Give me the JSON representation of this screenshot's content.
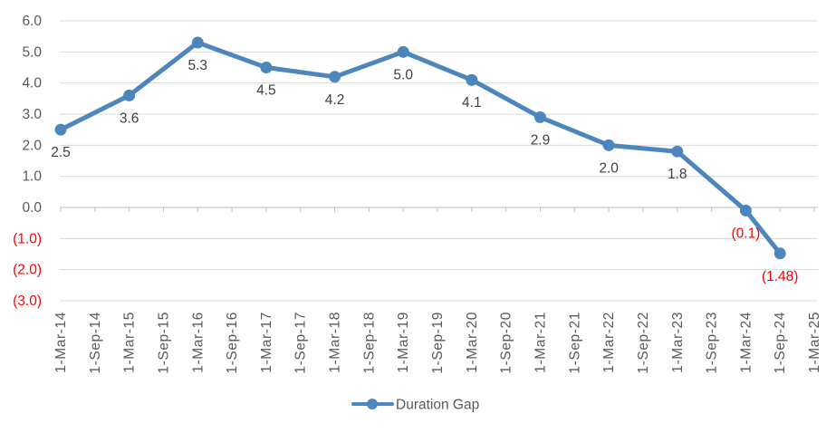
{
  "chart_data": {
    "type": "line",
    "title": "",
    "xlabel": "",
    "ylabel": "",
    "ylim": [
      -3,
      6
    ],
    "grid": true,
    "gridline_color": "#D9D9D9",
    "axis_line_color": "#BFBFBF",
    "background_color": "#FFFFFF",
    "categories": [
      "1-Mar-14",
      "1-Sep-14",
      "1-Mar-15",
      "1-Sep-15",
      "1-Mar-16",
      "1-Sep-16",
      "1-Mar-17",
      "1-Sep-17",
      "1-Mar-18",
      "1-Sep-18",
      "1-Mar-19",
      "1-Sep-19",
      "1-Mar-20",
      "1-Sep-20",
      "1-Mar-21",
      "1-Sep-21",
      "1-Mar-22",
      "1-Sep-22",
      "1-Mar-23",
      "1-Sep-23",
      "1-Mar-24",
      "1-Sep-24",
      "1-Mar-25"
    ],
    "x_axis": {
      "label_color": "#595959",
      "tick_color": "#BFBFBF"
    },
    "y_axis": {
      "min": -3,
      "max": 6,
      "step": 1,
      "tick_labels": [
        "6.0",
        "5.0",
        "4.0",
        "3.0",
        "2.0",
        "1.0",
        "0.0",
        "(1.0)",
        "(2.0)",
        "(3.0)"
      ],
      "label_color": "#595959",
      "negative_label_color": "#FF0000"
    },
    "series": [
      {
        "name": "Duration Gap",
        "color": "#4C86BC",
        "marker": "circle",
        "data_label_color": "#404040",
        "data_label_negative_color": "#FF0000",
        "points": [
          {
            "category": "1-Mar-14",
            "category_index": 0,
            "value": 2.5,
            "label": "2.5"
          },
          {
            "category": "1-Mar-15",
            "category_index": 2,
            "value": 3.6,
            "label": "3.6"
          },
          {
            "category": "1-Mar-16",
            "category_index": 4,
            "value": 5.3,
            "label": "5.3"
          },
          {
            "category": "1-Mar-17",
            "category_index": 6,
            "value": 4.5,
            "label": "4.5"
          },
          {
            "category": "1-Mar-18",
            "category_index": 8,
            "value": 4.2,
            "label": "4.2"
          },
          {
            "category": "1-Mar-19",
            "category_index": 10,
            "value": 5.0,
            "label": "5.0"
          },
          {
            "category": "1-Mar-20",
            "category_index": 12,
            "value": 4.1,
            "label": "4.1"
          },
          {
            "category": "1-Mar-21",
            "category_index": 14,
            "value": 2.9,
            "label": "2.9"
          },
          {
            "category": "1-Mar-22",
            "category_index": 16,
            "value": 2.0,
            "label": "2.0"
          },
          {
            "category": "1-Mar-23",
            "category_index": 18,
            "value": 1.8,
            "label": "1.8"
          },
          {
            "category": "1-Mar-24",
            "category_index": 20,
            "value": -0.1,
            "label": "(0.1)"
          },
          {
            "category": "1-Sep-24",
            "category_index": 21,
            "value": -1.48,
            "label": "(1.48)"
          }
        ]
      }
    ],
    "legend": {
      "position": "bottom",
      "label_color": "#595959",
      "entries": [
        {
          "label": "Duration Gap",
          "color": "#4C86BC"
        }
      ]
    }
  }
}
